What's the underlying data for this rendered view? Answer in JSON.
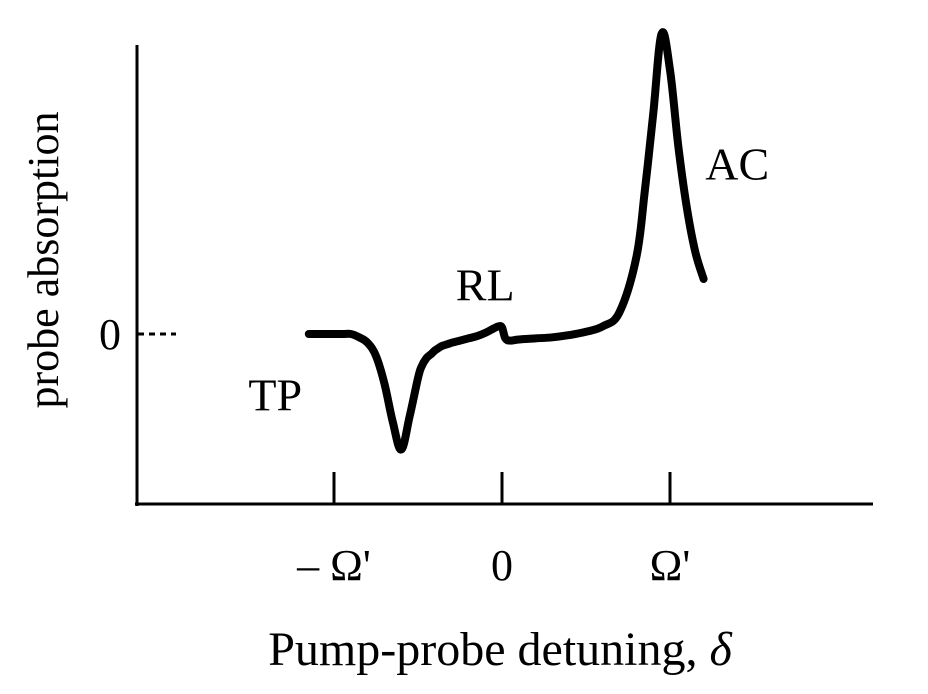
{
  "chart_data": {
    "type": "line",
    "title": "",
    "xlabel": "Pump-probe detuning, ",
    "xlabel_symbol": "δ",
    "ylabel": "probe absorption",
    "x_ticks": [
      {
        "value": -1,
        "label": "– Ω'"
      },
      {
        "value": 0,
        "label": "0"
      },
      {
        "value": 1,
        "label": "Ω'"
      }
    ],
    "y_ticks": [
      {
        "value": 0,
        "label": "0"
      }
    ],
    "xlim": [
      -1.15,
      1.2
    ],
    "ylim": [
      -1.0,
      2.75
    ],
    "annotations": [
      {
        "text": "TP",
        "x": -1.35,
        "y": -0.55
      },
      {
        "text": "RL",
        "x": -0.1,
        "y": 0.45
      },
      {
        "text": "AC",
        "x": 1.4,
        "y": 1.55
      }
    ],
    "series": [
      {
        "name": "probe absorption",
        "x": [
          -1.15,
          -1.05,
          -0.95,
          -0.9,
          -0.85,
          -0.8,
          -0.75,
          -0.7,
          -0.65,
          -0.6,
          -0.55,
          -0.5,
          -0.48,
          -0.45,
          -0.42,
          -0.4,
          -0.38,
          -0.36,
          -0.34,
          -0.32,
          -0.3,
          -0.25,
          -0.2,
          -0.15,
          -0.1,
          -0.05,
          -0.02,
          0.0,
          0.02,
          0.05,
          0.1,
          0.2,
          0.3,
          0.4,
          0.5,
          0.6,
          0.7,
          0.8,
          0.85,
          0.9,
          0.95,
          1.0,
          1.05,
          1.1,
          1.15,
          1.2
        ],
        "y": [
          0.0,
          0.0,
          0.0,
          0.0,
          -0.03,
          -0.08,
          -0.2,
          -0.45,
          -0.8,
          -1.05,
          -0.75,
          -0.4,
          -0.3,
          -0.22,
          -0.18,
          -0.15,
          -0.13,
          -0.11,
          -0.1,
          -0.09,
          -0.08,
          -0.06,
          -0.04,
          -0.02,
          0.01,
          0.05,
          0.07,
          0.06,
          -0.04,
          -0.06,
          -0.05,
          -0.04,
          -0.03,
          -0.01,
          0.02,
          0.07,
          0.2,
          0.7,
          1.3,
          2.0,
          2.73,
          2.4,
          1.7,
          1.15,
          0.75,
          0.5
        ]
      }
    ]
  }
}
